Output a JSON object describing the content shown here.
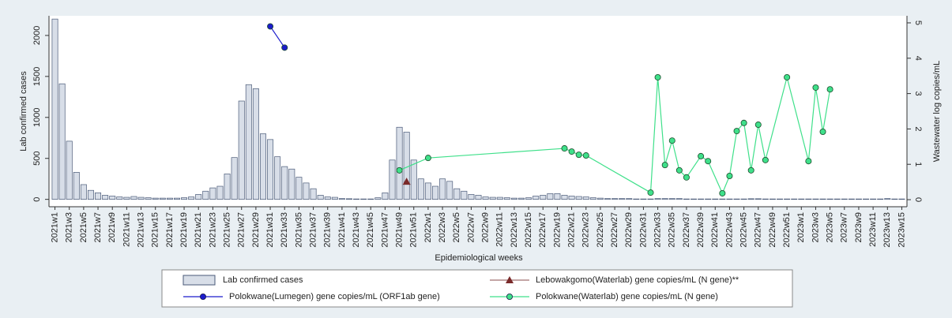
{
  "chart_data": {
    "type": "bar",
    "x_label": "Epidemiological weeks",
    "y_label": "Lab confirmed cases",
    "y2_label": "Wastewater log copies/mL",
    "categories": [
      "2021w1",
      null,
      "2021w3",
      null,
      "2021w5",
      null,
      "2021w7",
      null,
      "2021w9",
      null,
      "2021w11",
      null,
      "2021w13",
      null,
      "2021w15",
      null,
      "2021w17",
      null,
      "2021w19",
      null,
      "2021w21",
      null,
      "2021w23",
      null,
      "2021w25",
      null,
      "2021w27",
      null,
      "2021w29",
      null,
      "2021w31",
      null,
      "2021w33",
      null,
      "2021w35",
      null,
      "2021w37",
      null,
      "2021w39",
      null,
      "2021w41",
      null,
      "2021w43",
      null,
      "2021w45",
      null,
      "2021w47",
      null,
      "2021w49",
      null,
      "2021w51",
      null,
      "2022w1",
      null,
      "2022w3",
      null,
      "2022w5",
      null,
      "2022w7",
      null,
      "2022w9",
      null,
      "2022w11",
      null,
      "2022w13",
      null,
      "2022w15",
      null,
      "2022w17",
      null,
      "2022w19",
      null,
      "2022w21",
      null,
      "2022w23",
      null,
      "2022w25",
      null,
      "2022w27",
      null,
      "2022w29",
      null,
      "2022w31",
      null,
      "2022w33",
      null,
      "2022w35",
      null,
      "2022w37",
      null,
      "2022w39",
      null,
      "2022w41",
      null,
      "2022w43",
      null,
      "2022w45",
      null,
      "2022w47",
      null,
      "2022w49",
      null,
      "2022w51",
      null,
      "2023w1",
      null,
      "2023w3",
      null,
      "2023w5",
      null,
      "2023w7",
      null,
      "2023w9",
      null,
      "2023w11",
      null,
      "2023w13",
      null,
      "2023w15"
    ],
    "ylim": [
      -90,
      2240
    ],
    "yticks": [
      0,
      500,
      1000,
      1500,
      2000
    ],
    "y2lim": [
      -0.2,
      5.2
    ],
    "y2ticks": [
      0,
      1,
      2,
      3,
      4,
      5
    ],
    "series": [
      {
        "name": "Lab confirmed cases",
        "type": "bar",
        "color": "#d8dee8",
        "values": [
          2200,
          1410,
          710,
          330,
          180,
          110,
          80,
          50,
          40,
          30,
          25,
          35,
          25,
          20,
          15,
          15,
          15,
          15,
          20,
          30,
          60,
          100,
          140,
          160,
          310,
          510,
          1200,
          1400,
          1350,
          800,
          730,
          520,
          400,
          370,
          270,
          200,
          130,
          50,
          30,
          25,
          10,
          8,
          5,
          5,
          5,
          20,
          80,
          480,
          880,
          820,
          480,
          250,
          200,
          160,
          250,
          220,
          130,
          100,
          60,
          50,
          30,
          25,
          25,
          20,
          15,
          15,
          20,
          40,
          50,
          70,
          70,
          50,
          40,
          35,
          30,
          20,
          15,
          10,
          10,
          10,
          10,
          5,
          5,
          5,
          10,
          10,
          10,
          10,
          5,
          5,
          5,
          5,
          5,
          5,
          5,
          5,
          5,
          8,
          8,
          5,
          5,
          5,
          5,
          5,
          5,
          5,
          5,
          5,
          5,
          5,
          5,
          5,
          5,
          5,
          5,
          5,
          10,
          5,
          5
        ]
      },
      {
        "name": "Lebowakgomo(Waterlab) gene copies/mL (N gene)**",
        "type": "scatter",
        "marker": "triangle",
        "color": "#7a2a2a",
        "axis": "y2",
        "x": [
          49
        ],
        "values": [
          0.51
        ]
      },
      {
        "name": "Polokwane(Lumegen) gene copies/mL (ORF1ab gene)",
        "type": "line",
        "color": "#1c1ccc",
        "axis": "y2",
        "x": [
          30,
          32
        ],
        "values": [
          4.9,
          4.3
        ]
      },
      {
        "name": "Polokwane(Waterlab) gene copies/mL (N gene)",
        "type": "line",
        "color": "#3fe08a",
        "axis": "y2",
        "x": [
          48,
          52,
          71,
          72,
          73,
          74,
          83,
          84,
          85,
          86,
          87,
          88,
          90,
          91,
          93,
          94,
          95,
          96,
          97,
          98,
          99,
          102,
          105,
          106,
          107,
          108
        ],
        "values": [
          0.83,
          1.18,
          1.45,
          1.36,
          1.27,
          1.25,
          0.2,
          3.46,
          0.98,
          1.67,
          0.83,
          0.63,
          1.23,
          1.09,
          0.18,
          0.67,
          1.94,
          2.17,
          0.83,
          2.12,
          1.12,
          3.46,
          1.09,
          3.17,
          1.92,
          3.12
        ]
      }
    ]
  }
}
